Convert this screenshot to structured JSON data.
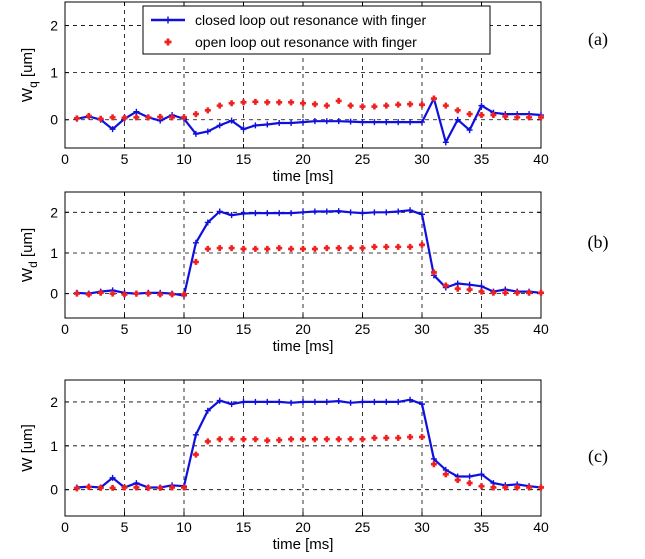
{
  "figure": {
    "panel_tags": [
      "(a)",
      "(b)",
      "(c)"
    ],
    "colors": {
      "closed": "#1010dd",
      "open": "#ee2020",
      "grid": "#000000"
    }
  },
  "chart_data": [
    {
      "type": "line",
      "panel": "(a)",
      "xlabel": "time [ms]",
      "ylabel": "W_q [um]",
      "ylabel_main": "W",
      "ylabel_sub": "q",
      "ylabel_rest": " [um]",
      "xlim": [
        0,
        40
      ],
      "ylim": [
        -0.6,
        2.5
      ],
      "xticks": [
        0,
        5,
        10,
        15,
        20,
        25,
        30,
        35,
        40
      ],
      "yticks": [
        0,
        1,
        2
      ],
      "grid": true,
      "legend": "top-center",
      "series": [
        {
          "name": "closed loop out resonance with finger",
          "style": "line-plus",
          "x": [
            1,
            2,
            3,
            4,
            5,
            6,
            7,
            8,
            9,
            10,
            11,
            12,
            13,
            14,
            15,
            16,
            17,
            18,
            19,
            20,
            21,
            22,
            23,
            24,
            25,
            26,
            27,
            28,
            29,
            30,
            31,
            32,
            33,
            34,
            35,
            36,
            37,
            38,
            39,
            40
          ],
          "values": [
            0.02,
            0.07,
            0.0,
            -0.2,
            0.02,
            0.17,
            0.05,
            -0.02,
            0.1,
            0.02,
            -0.3,
            -0.25,
            -0.12,
            -0.02,
            -0.2,
            -0.12,
            -0.1,
            -0.07,
            -0.07,
            -0.05,
            -0.03,
            -0.03,
            -0.03,
            -0.04,
            -0.05,
            -0.05,
            -0.05,
            -0.05,
            -0.05,
            -0.05,
            0.45,
            -0.48,
            0.0,
            -0.22,
            0.3,
            0.15,
            0.12,
            0.12,
            0.12,
            0.1
          ]
        },
        {
          "name": "open loop out resonance with finger",
          "style": "plus-markers",
          "x": [
            1,
            2,
            3,
            4,
            5,
            6,
            7,
            8,
            9,
            10,
            11,
            12,
            13,
            14,
            15,
            16,
            17,
            18,
            19,
            20,
            21,
            22,
            23,
            24,
            25,
            26,
            27,
            28,
            29,
            30,
            31,
            32,
            33,
            34,
            35,
            36,
            37,
            38,
            39,
            40
          ],
          "values": [
            0.03,
            0.08,
            0.02,
            0.05,
            0.04,
            0.05,
            0.05,
            0.06,
            0.05,
            0.05,
            0.12,
            0.2,
            0.3,
            0.35,
            0.37,
            0.38,
            0.37,
            0.37,
            0.37,
            0.35,
            0.33,
            0.3,
            0.4,
            0.3,
            0.28,
            0.28,
            0.3,
            0.32,
            0.33,
            0.32,
            0.45,
            0.3,
            0.2,
            0.12,
            0.1,
            0.1,
            0.07,
            0.05,
            0.05,
            0.05
          ]
        }
      ]
    },
    {
      "type": "line",
      "panel": "(b)",
      "xlabel": "time [ms]",
      "ylabel": "W_d [um]",
      "ylabel_main": "W",
      "ylabel_sub": "d",
      "ylabel_rest": " [um]",
      "xlim": [
        0,
        40
      ],
      "ylim": [
        -0.6,
        2.5
      ],
      "xticks": [
        0,
        5,
        10,
        15,
        20,
        25,
        30,
        35,
        40
      ],
      "yticks": [
        0,
        1,
        2
      ],
      "grid": true,
      "series": [
        {
          "name": "closed loop out resonance with finger",
          "style": "line-plus",
          "x": [
            1,
            2,
            3,
            4,
            5,
            6,
            7,
            8,
            9,
            10,
            11,
            12,
            13,
            14,
            15,
            16,
            17,
            18,
            19,
            20,
            21,
            22,
            23,
            24,
            25,
            26,
            27,
            28,
            29,
            30,
            31,
            32,
            33,
            34,
            35,
            36,
            37,
            38,
            39,
            40
          ],
          "values": [
            0.02,
            0.0,
            0.05,
            0.08,
            0.02,
            0.0,
            0.02,
            0.02,
            0.0,
            -0.05,
            1.25,
            1.75,
            2.02,
            1.93,
            1.97,
            1.98,
            1.98,
            1.98,
            1.98,
            2.0,
            2.02,
            2.02,
            2.03,
            2.0,
            1.98,
            2.0,
            2.0,
            2.02,
            2.05,
            1.95,
            0.45,
            0.15,
            0.25,
            0.22,
            0.18,
            0.05,
            0.1,
            0.05,
            0.05,
            0.02
          ]
        },
        {
          "name": "open loop out resonance with finger",
          "style": "plus-markers",
          "x": [
            1,
            2,
            3,
            4,
            5,
            6,
            7,
            8,
            9,
            10,
            11,
            12,
            13,
            14,
            15,
            16,
            17,
            18,
            19,
            20,
            21,
            22,
            23,
            24,
            25,
            26,
            27,
            28,
            29,
            30,
            31,
            32,
            33,
            34,
            35,
            36,
            37,
            38,
            39,
            40
          ],
          "values": [
            0.0,
            -0.02,
            0.02,
            0.0,
            -0.02,
            0.0,
            0.0,
            -0.02,
            -0.02,
            -0.02,
            0.78,
            1.1,
            1.12,
            1.12,
            1.1,
            1.1,
            1.1,
            1.12,
            1.1,
            1.1,
            1.1,
            1.12,
            1.12,
            1.12,
            1.12,
            1.15,
            1.15,
            1.15,
            1.15,
            1.2,
            0.52,
            0.2,
            0.12,
            0.1,
            0.05,
            0.02,
            0.02,
            0.02,
            0.02,
            0.02
          ]
        }
      ]
    },
    {
      "type": "line",
      "panel": "(c)",
      "xlabel": "time [ms]",
      "ylabel": "W [um]",
      "ylabel_main": "W",
      "ylabel_sub": "",
      "ylabel_rest": " [um]",
      "xlim": [
        0,
        40
      ],
      "ylim": [
        -0.6,
        2.5
      ],
      "xticks": [
        0,
        5,
        10,
        15,
        20,
        25,
        30,
        35,
        40
      ],
      "yticks": [
        0,
        1,
        2
      ],
      "grid": true,
      "series": [
        {
          "name": "closed loop out resonance with finger",
          "style": "line-plus",
          "x": [
            1,
            2,
            3,
            4,
            5,
            6,
            7,
            8,
            9,
            10,
            11,
            12,
            13,
            14,
            15,
            16,
            17,
            18,
            19,
            20,
            21,
            22,
            23,
            24,
            25,
            26,
            27,
            28,
            29,
            30,
            31,
            32,
            33,
            34,
            35,
            36,
            37,
            38,
            39,
            40
          ],
          "values": [
            0.05,
            0.07,
            0.05,
            0.27,
            0.05,
            0.15,
            0.05,
            0.05,
            0.1,
            0.08,
            1.25,
            1.8,
            2.03,
            1.95,
            2.0,
            2.0,
            2.0,
            2.0,
            1.98,
            2.0,
            2.0,
            2.0,
            2.02,
            1.98,
            2.0,
            2.0,
            2.0,
            2.0,
            2.05,
            1.95,
            0.7,
            0.45,
            0.3,
            0.3,
            0.35,
            0.15,
            0.1,
            0.12,
            0.08,
            0.05
          ]
        },
        {
          "name": "open loop out resonance with finger",
          "style": "plus-markers",
          "x": [
            1,
            2,
            3,
            4,
            5,
            6,
            7,
            8,
            9,
            10,
            11,
            12,
            13,
            14,
            15,
            16,
            17,
            18,
            19,
            20,
            21,
            22,
            23,
            24,
            25,
            26,
            27,
            28,
            29,
            30,
            31,
            32,
            33,
            34,
            35,
            36,
            37,
            38,
            39,
            40
          ],
          "values": [
            0.03,
            0.06,
            0.04,
            0.04,
            0.05,
            0.05,
            0.04,
            0.04,
            0.05,
            0.05,
            0.8,
            1.1,
            1.15,
            1.15,
            1.15,
            1.15,
            1.12,
            1.13,
            1.15,
            1.15,
            1.15,
            1.15,
            1.15,
            1.15,
            1.15,
            1.18,
            1.18,
            1.18,
            1.2,
            1.2,
            0.58,
            0.35,
            0.22,
            0.15,
            0.08,
            0.05,
            0.05,
            0.05,
            0.05,
            0.05
          ]
        }
      ]
    }
  ]
}
